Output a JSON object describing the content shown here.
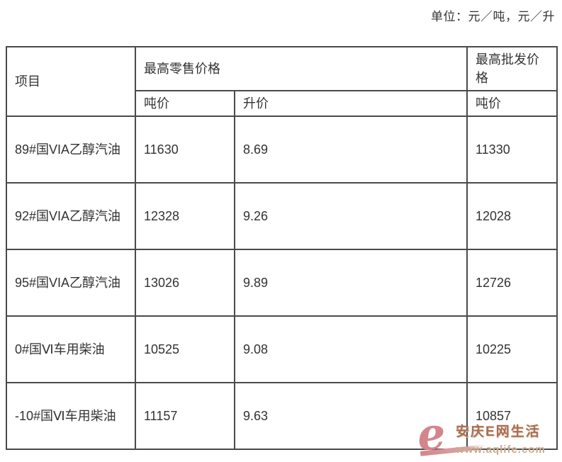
{
  "unit_label": "单位：元／吨，元／升",
  "table": {
    "header": {
      "item": "项目",
      "retail_group": "最高零售价格",
      "wholesale_group": "最高批发价格",
      "sub_retail_ton": "吨价",
      "sub_retail_liter": "升价",
      "sub_wholesale_ton": "吨价"
    },
    "rows": [
      {
        "item": "89#国VIA乙醇汽油",
        "retail_ton": "11630",
        "retail_liter": "8.69",
        "wholesale_ton": "11330"
      },
      {
        "item": "92#国VIA乙醇汽油",
        "retail_ton": "12328",
        "retail_liter": "9.26",
        "wholesale_ton": "12028"
      },
      {
        "item": "95#国VIA乙醇汽油",
        "retail_ton": "13026",
        "retail_liter": "9.89",
        "wholesale_ton": "12726"
      },
      {
        "item": "0#国Ⅵ车用柴油",
        "retail_ton": "10525",
        "retail_liter": "9.08",
        "wholesale_ton": "10225"
      },
      {
        "item": "-10#国Ⅵ车用柴油",
        "retail_ton": "11157",
        "retail_liter": "9.63",
        "wholesale_ton": "10857"
      }
    ]
  },
  "watermark": {
    "logo_glyph": "e",
    "site_name": "安庆E网生活",
    "site_url": "www.aqlife.com",
    "logo_color": "#d2868c",
    "name_color": "#a96e54",
    "url_color": "#c9ab8e"
  },
  "colors": {
    "table_border": "#4a4a4a",
    "text": "#333333",
    "background": "#ffffff"
  }
}
